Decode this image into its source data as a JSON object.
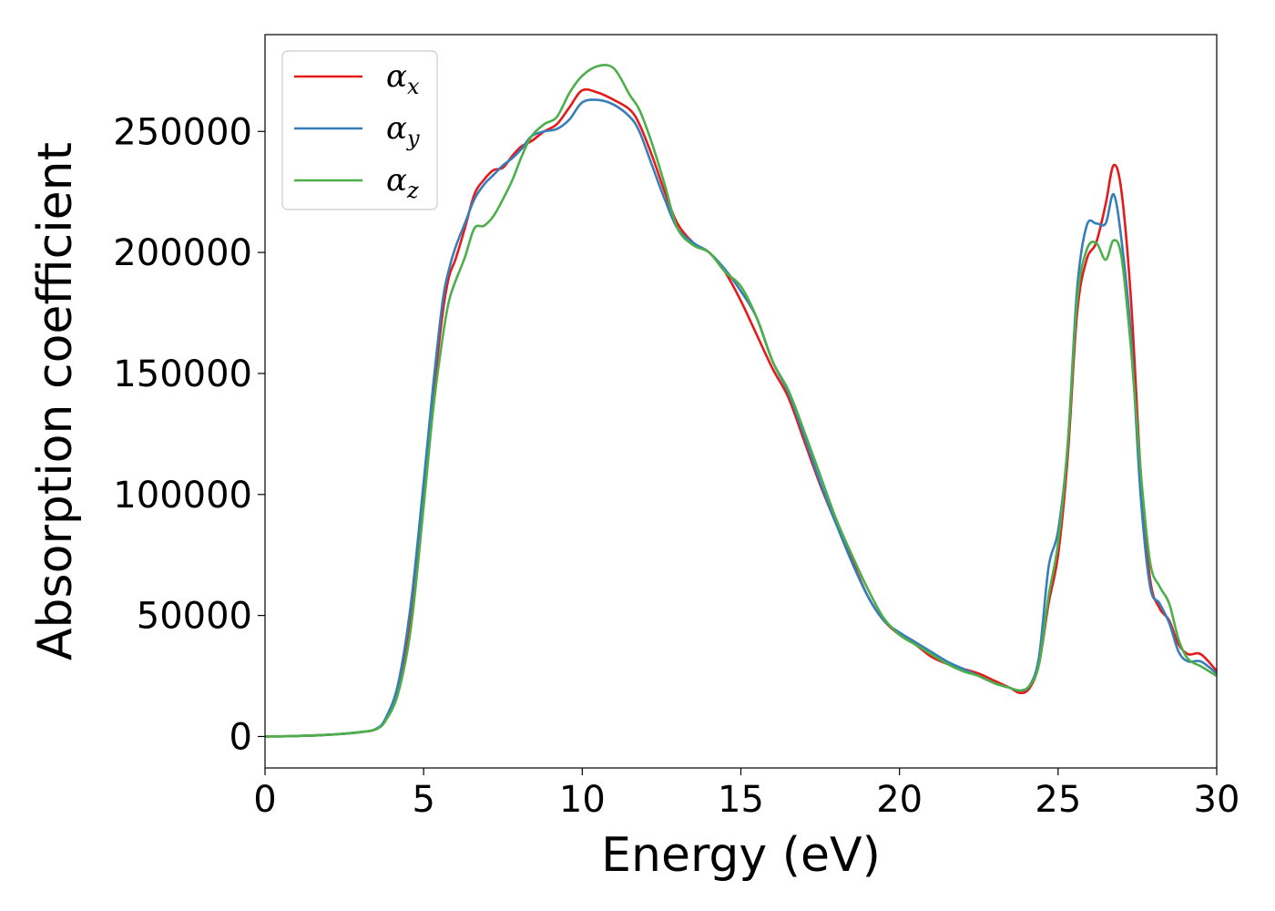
{
  "chart_data": {
    "type": "line",
    "title": "",
    "xlabel": "Energy (eV)",
    "ylabel": "Absorption coefficient",
    "xlim": [
      0,
      30
    ],
    "ylim": [
      -13000,
      290000
    ],
    "xticks": [
      0,
      5,
      10,
      15,
      20,
      25,
      30
    ],
    "yticks": [
      0,
      50000,
      100000,
      150000,
      200000,
      250000
    ],
    "grid": false,
    "legend_position": "top-left",
    "series": [
      {
        "name": "α",
        "subscript": "x",
        "color": "#e41a1c",
        "x": [
          0,
          1,
          2,
          3,
          3.5,
          3.8,
          4.2,
          4.6,
          5,
          5.3,
          5.6,
          5.8,
          6,
          6.3,
          6.6,
          6.9,
          7.2,
          7.5,
          7.8,
          8.1,
          8.4,
          8.8,
          9.2,
          9.6,
          10,
          10.5,
          11,
          11.5,
          11.8,
          12.2,
          12.6,
          13,
          13.5,
          14,
          14.5,
          15,
          15.5,
          16,
          16.5,
          17,
          17.5,
          18,
          18.5,
          19,
          19.5,
          20,
          20.5,
          21,
          21.5,
          22,
          22.5,
          23,
          23.5,
          23.8,
          24.1,
          24.4,
          24.7,
          25,
          25.3,
          25.6,
          25.9,
          26.2,
          26.5,
          26.75,
          27,
          27.3,
          27.6,
          27.9,
          28.2,
          28.5,
          28.8,
          29.1,
          29.5,
          30
        ],
        "y": [
          0,
          200,
          700,
          1800,
          3000,
          7000,
          20000,
          50000,
          100000,
          140000,
          175000,
          190000,
          197000,
          210000,
          224000,
          230000,
          234000,
          235000,
          240000,
          244000,
          246000,
          250000,
          253000,
          260000,
          267000,
          266000,
          263000,
          259000,
          253000,
          240000,
          225000,
          212000,
          204000,
          200000,
          192000,
          180000,
          166000,
          152000,
          140000,
          122000,
          104000,
          88000,
          73000,
          58000,
          48000,
          42000,
          38000,
          33000,
          30000,
          28000,
          26000,
          23000,
          20000,
          18000,
          20000,
          30000,
          55000,
          75000,
          115000,
          175000,
          197000,
          204000,
          220000,
          236000,
          225000,
          180000,
          110000,
          65000,
          53000,
          48000,
          38000,
          34000,
          34000,
          27000
        ]
      },
      {
        "name": "α",
        "subscript": "y",
        "color": "#377eb8",
        "x": [
          0,
          1,
          2,
          3,
          3.5,
          3.8,
          4.2,
          4.6,
          5,
          5.3,
          5.6,
          5.8,
          6,
          6.3,
          6.6,
          6.9,
          7.2,
          7.5,
          7.8,
          8.1,
          8.4,
          8.8,
          9.2,
          9.6,
          10,
          10.5,
          11,
          11.5,
          11.8,
          12.2,
          12.6,
          13,
          13.5,
          14,
          14.5,
          15,
          15.5,
          16,
          16.5,
          17,
          17.5,
          18,
          18.5,
          19,
          19.5,
          20,
          20.5,
          21,
          21.5,
          22,
          22.5,
          23,
          23.5,
          23.8,
          24.1,
          24.4,
          24.7,
          25,
          25.3,
          25.6,
          25.9,
          26.2,
          26.5,
          26.75,
          27,
          27.3,
          27.6,
          27.9,
          28.2,
          28.5,
          28.8,
          29.1,
          29.5,
          30
        ],
        "y": [
          0,
          200,
          700,
          1800,
          3200,
          7500,
          22000,
          55000,
          105000,
          145000,
          180000,
          193000,
          202000,
          212000,
          222000,
          228000,
          232000,
          236000,
          239000,
          243000,
          248000,
          250000,
          251000,
          255000,
          262000,
          263000,
          261000,
          256000,
          250000,
          236000,
          222000,
          210000,
          204000,
          200000,
          193000,
          184000,
          173000,
          155000,
          142000,
          124000,
          105000,
          88000,
          72000,
          58000,
          48000,
          43000,
          39000,
          35000,
          31000,
          28000,
          25000,
          22000,
          20000,
          19000,
          21000,
          33000,
          70000,
          85000,
          120000,
          185000,
          211000,
          212000,
          212000,
          224000,
          205000,
          165000,
          100000,
          62000,
          55000,
          47000,
          35000,
          31000,
          31000,
          26000
        ]
      },
      {
        "name": "α",
        "subscript": "z",
        "color": "#4daf4a",
        "x": [
          0,
          1,
          2,
          3,
          3.5,
          3.8,
          4.2,
          4.6,
          5,
          5.3,
          5.6,
          5.8,
          6,
          6.3,
          6.6,
          6.9,
          7.2,
          7.5,
          7.8,
          8.1,
          8.4,
          8.8,
          9.2,
          9.6,
          10,
          10.5,
          11,
          11.5,
          11.8,
          12.2,
          12.6,
          13,
          13.5,
          14,
          14.5,
          15,
          15.5,
          16,
          16.5,
          17,
          17.5,
          18,
          18.5,
          19,
          19.5,
          20,
          20.5,
          21,
          21.5,
          22,
          22.5,
          23,
          23.5,
          23.8,
          24.1,
          24.4,
          24.7,
          25,
          25.3,
          25.6,
          25.9,
          26.2,
          26.5,
          26.75,
          27,
          27.3,
          27.6,
          27.9,
          28.2,
          28.5,
          28.8,
          29.1,
          29.5,
          30
        ],
        "y": [
          0,
          200,
          700,
          1800,
          3000,
          6500,
          18000,
          45000,
          95000,
          135000,
          165000,
          180000,
          188000,
          198000,
          210000,
          211000,
          215000,
          222000,
          230000,
          240000,
          248000,
          253000,
          256000,
          266000,
          273000,
          277000,
          276000,
          265000,
          259000,
          245000,
          228000,
          210000,
          203000,
          200000,
          192000,
          186000,
          173000,
          155000,
          143000,
          126000,
          108000,
          90000,
          75000,
          61000,
          49000,
          42000,
          38000,
          34000,
          30000,
          27000,
          25000,
          22000,
          20000,
          19000,
          21000,
          30000,
          58000,
          80000,
          120000,
          180000,
          201000,
          204000,
          197000,
          205000,
          198000,
          160000,
          110000,
          72000,
          62000,
          55000,
          40000,
          32000,
          29000,
          25000
        ]
      }
    ]
  }
}
